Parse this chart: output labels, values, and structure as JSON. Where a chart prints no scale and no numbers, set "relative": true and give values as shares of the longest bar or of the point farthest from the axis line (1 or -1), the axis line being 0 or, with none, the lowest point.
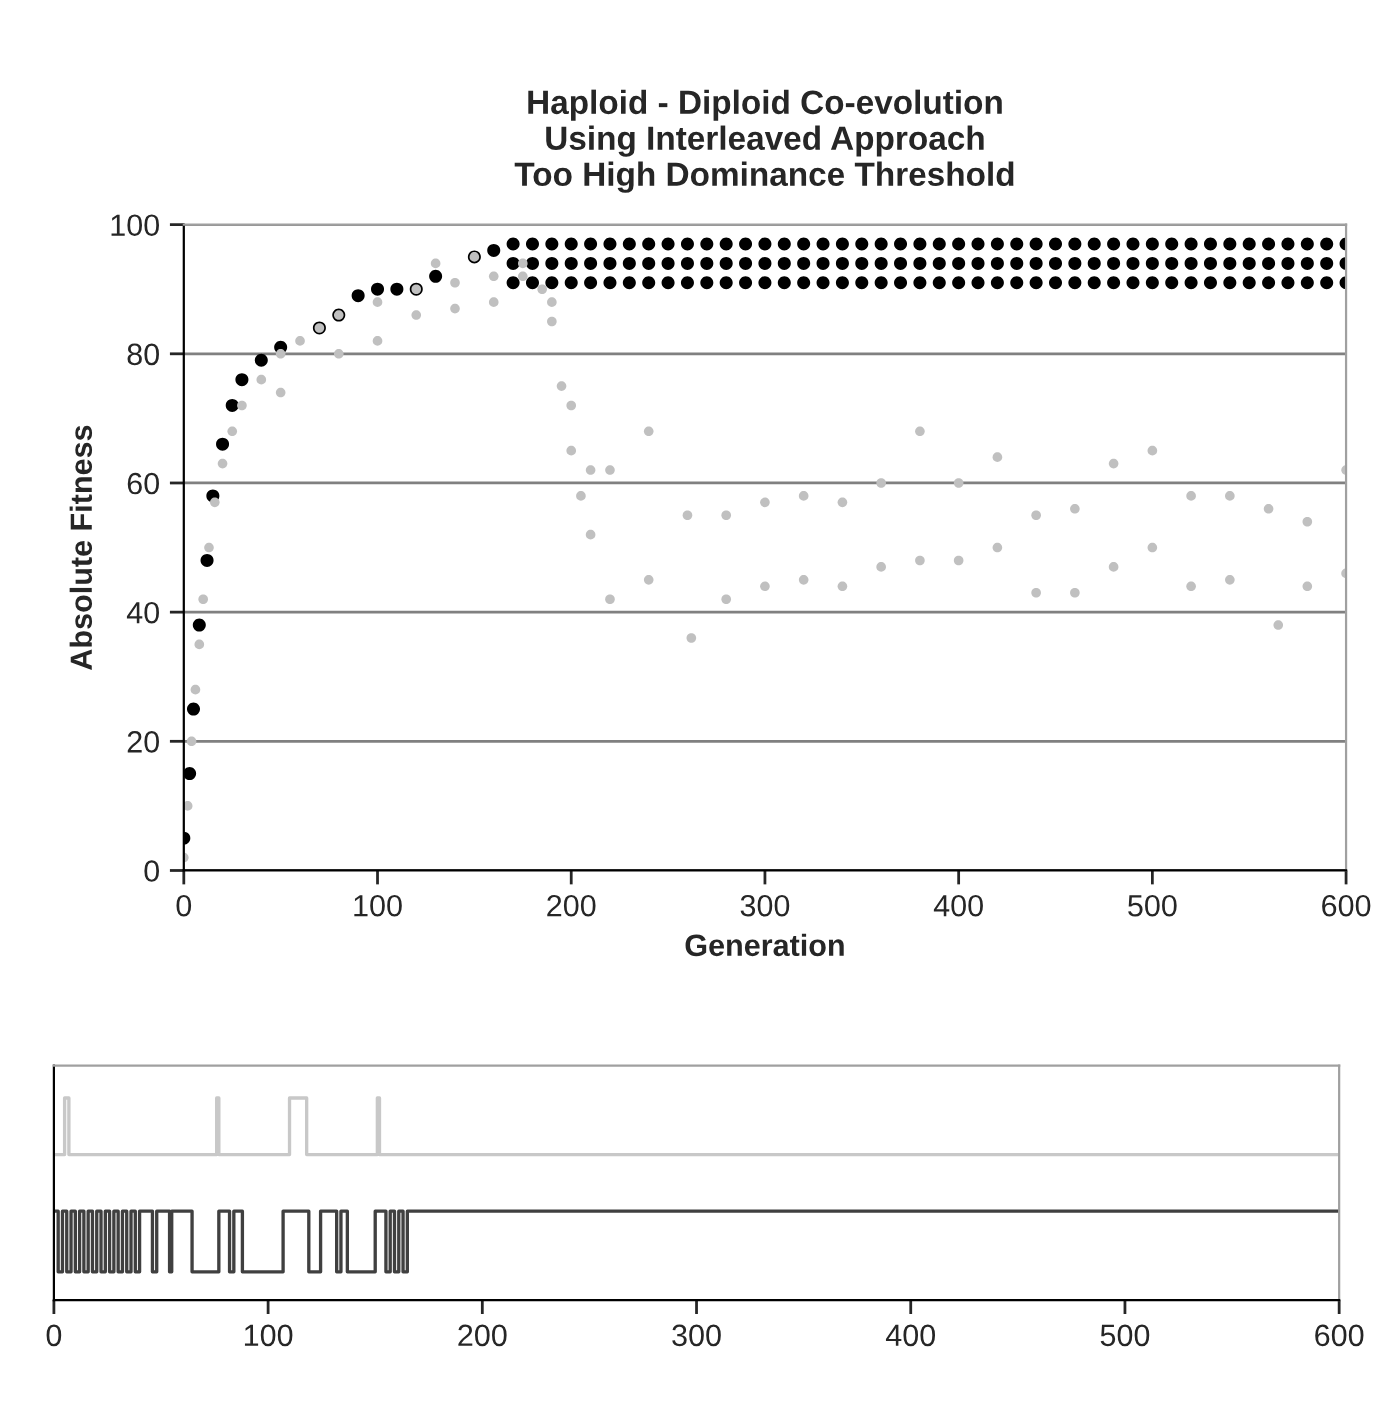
{
  "chart_data": [
    {
      "type": "scatter",
      "title": "Haploid - Diploid Co-evolution\nUsing Interleaved Approach\nToo High Dominance Threshold",
      "xlabel": "Generation",
      "ylabel": "Absolute Fitness",
      "xlim": [
        0,
        600
      ],
      "xticks": [
        0,
        100,
        200,
        300,
        400,
        500,
        600
      ],
      "ylim": [
        0,
        100
      ],
      "yticks": [
        0,
        20,
        40,
        60,
        80,
        100
      ],
      "grid": "y",
      "marker": "circle",
      "series": [
        {
          "color": "#000000",
          "x": [
            0,
            3,
            5,
            8,
            12,
            15,
            20,
            25,
            30,
            40,
            50,
            70,
            80,
            90,
            100,
            110,
            120,
            130,
            150,
            160,
            170,
            180,
            190,
            200,
            210,
            220,
            230,
            240,
            250,
            260,
            270,
            280,
            290,
            300,
            310,
            320,
            330,
            340,
            350,
            360,
            370,
            380,
            390,
            400,
            410,
            420,
            430,
            440,
            450,
            460,
            470,
            480,
            490,
            500,
            510,
            520,
            530,
            540,
            550,
            560,
            570,
            580,
            590,
            600,
            170,
            180,
            190,
            200,
            210,
            220,
            230,
            240,
            250,
            260,
            270,
            280,
            290,
            300,
            310,
            320,
            330,
            340,
            350,
            360,
            370,
            380,
            390,
            400,
            410,
            420,
            430,
            440,
            450,
            460,
            470,
            480,
            490,
            500,
            510,
            520,
            530,
            540,
            550,
            560,
            570,
            580,
            590,
            600,
            170,
            180,
            190,
            200,
            210,
            220,
            230,
            240,
            250,
            260,
            270,
            280,
            290,
            300,
            310,
            320,
            330,
            340,
            350,
            360,
            370,
            380,
            390,
            400,
            410,
            420,
            430,
            440,
            450,
            460,
            470,
            480,
            490,
            500,
            510,
            520,
            530,
            540,
            550,
            560,
            570,
            580,
            590,
            600
          ],
          "values": [
            5,
            15,
            25,
            38,
            48,
            58,
            66,
            72,
            76,
            79,
            81,
            84,
            86,
            89,
            90,
            90,
            90,
            92,
            95,
            96,
            97,
            97,
            97,
            97,
            97,
            97,
            97,
            97,
            97,
            97,
            97,
            97,
            97,
            97,
            97,
            97,
            97,
            97,
            97,
            97,
            97,
            97,
            97,
            97,
            97,
            97,
            97,
            97,
            97,
            97,
            97,
            97,
            97,
            97,
            97,
            97,
            97,
            97,
            97,
            97,
            97,
            97,
            97,
            97,
            94,
            94,
            94,
            94,
            94,
            94,
            94,
            94,
            94,
            94,
            94,
            94,
            94,
            94,
            94,
            94,
            94,
            94,
            94,
            94,
            94,
            94,
            94,
            94,
            94,
            94,
            94,
            94,
            94,
            94,
            94,
            94,
            94,
            94,
            94,
            94,
            94,
            94,
            94,
            94,
            94,
            94,
            94,
            94,
            91,
            91,
            91,
            91,
            91,
            91,
            91,
            91,
            91,
            91,
            91,
            91,
            91,
            91,
            91,
            91,
            91,
            91,
            91,
            91,
            91,
            91,
            91,
            91,
            91,
            91,
            91,
            91,
            91,
            91,
            91,
            91,
            91,
            91,
            91,
            91,
            91,
            91,
            91,
            91,
            91,
            91,
            91,
            91
          ]
        },
        {
          "color": "#c0c0c0",
          "x": [
            0,
            2,
            4,
            6,
            8,
            10,
            13,
            16,
            20,
            25,
            30,
            40,
            50,
            60,
            70,
            80,
            100,
            120,
            140,
            160,
            175,
            185,
            190,
            195,
            200,
            205,
            210,
            50,
            80,
            100,
            120,
            140,
            160,
            130,
            150,
            175,
            190,
            200,
            210,
            220,
            240,
            260,
            280,
            300,
            320,
            340,
            360,
            380,
            400,
            420,
            440,
            460,
            480,
            500,
            520,
            540,
            560,
            580,
            600,
            220,
            240,
            262,
            280,
            300,
            320,
            340,
            360,
            380,
            400,
            420,
            440,
            460,
            480,
            500,
            520,
            540,
            565,
            580,
            600
          ],
          "values": [
            2,
            10,
            20,
            28,
            35,
            42,
            50,
            57,
            63,
            68,
            72,
            76,
            80,
            82,
            84,
            86,
            88,
            90,
            91,
            92,
            92,
            90,
            85,
            75,
            65,
            58,
            52,
            74,
            80,
            82,
            86,
            87,
            88,
            94,
            95,
            94,
            88,
            72,
            62,
            62,
            68,
            55,
            55,
            57,
            58,
            57,
            60,
            68,
            60,
            64,
            55,
            56,
            63,
            65,
            58,
            58,
            56,
            54,
            62,
            42,
            45,
            36,
            42,
            44,
            45,
            44,
            47,
            48,
            48,
            50,
            43,
            43,
            47,
            50,
            44,
            45,
            38,
            44,
            46
          ]
        }
      ]
    },
    {
      "type": "step",
      "relative": true,
      "xlim": [
        0,
        600
      ],
      "xticks": [
        0,
        100,
        200,
        300,
        400,
        500,
        600
      ],
      "tick_labels": "x",
      "series": [
        {
          "color": "#c8c8c8",
          "x": [
            0,
            4,
            5,
            6,
            7,
            75,
            76,
            77,
            109,
            110,
            117,
            118,
            150,
            151,
            152,
            600
          ],
          "values": [
            0.72,
            0.72,
            1,
            1,
            0.72,
            0.72,
            1,
            0.72,
            0.72,
            1,
            1,
            0.72,
            0.72,
            1,
            0.72,
            0.72
          ]
        },
        {
          "color": "#404040",
          "x": [
            0,
            2,
            4,
            6,
            8,
            10,
            12,
            14,
            16,
            18,
            20,
            22,
            24,
            26,
            28,
            30,
            32,
            34,
            36,
            38,
            40,
            46,
            48,
            54,
            55,
            64.5,
            77,
            82,
            84,
            88,
            107,
            119,
            124.5,
            132,
            134,
            137,
            150,
            155,
            157,
            159,
            161,
            163,
            165,
            600
          ],
          "values": [
            0.44,
            0.14,
            0.44,
            0.14,
            0.44,
            0.14,
            0.44,
            0.14,
            0.44,
            0.14,
            0.44,
            0.14,
            0.44,
            0.14,
            0.44,
            0.14,
            0.44,
            0.14,
            0.44,
            0.14,
            0.44,
            0.14,
            0.44,
            0.14,
            0.44,
            0.14,
            0.44,
            0.14,
            0.44,
            0.14,
            0.44,
            0.14,
            0.44,
            0.14,
            0.44,
            0.14,
            0.44,
            0.14,
            0.44,
            0.14,
            0.44,
            0.14,
            0.44,
            0.44
          ]
        }
      ]
    }
  ]
}
